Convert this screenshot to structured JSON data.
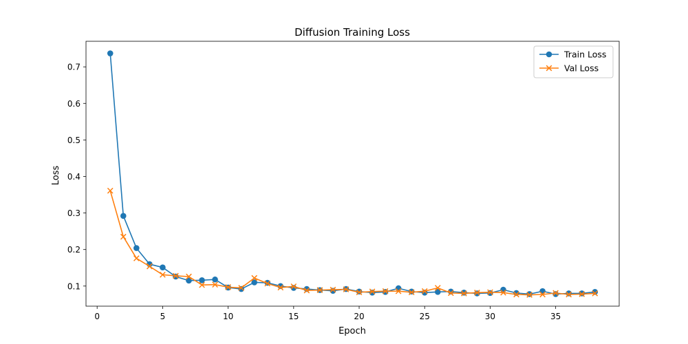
{
  "chart_data": {
    "type": "line",
    "title": "Diffusion Training Loss",
    "xlabel": "Epoch",
    "ylabel": "Loss",
    "xlim": [
      -0.85,
      39.85
    ],
    "ylim": [
      0.045,
      0.77
    ],
    "x_ticks": [
      0,
      5,
      10,
      15,
      20,
      25,
      30,
      35
    ],
    "y_ticks": [
      0.1,
      0.2,
      0.3,
      0.4,
      0.5,
      0.6,
      0.7
    ],
    "grid": false,
    "legend_position": "top-right",
    "x": [
      1,
      2,
      3,
      4,
      5,
      6,
      7,
      8,
      9,
      10,
      11,
      12,
      13,
      14,
      15,
      16,
      17,
      18,
      19,
      20,
      21,
      22,
      23,
      24,
      25,
      26,
      27,
      28,
      29,
      30,
      31,
      32,
      33,
      34,
      35,
      36,
      37,
      38
    ],
    "series": [
      {
        "name": "Train Loss",
        "color": "#1f77b4",
        "marker": "circle",
        "values": [
          0.737,
          0.292,
          0.204,
          0.16,
          0.151,
          0.126,
          0.115,
          0.116,
          0.118,
          0.096,
          0.092,
          0.11,
          0.109,
          0.1,
          0.095,
          0.092,
          0.089,
          0.087,
          0.092,
          0.085,
          0.082,
          0.084,
          0.094,
          0.085,
          0.082,
          0.084,
          0.085,
          0.082,
          0.08,
          0.081,
          0.09,
          0.081,
          0.078,
          0.086,
          0.078,
          0.08,
          0.08,
          0.084
        ]
      },
      {
        "name": "Val Loss",
        "color": "#ff7f0e",
        "marker": "x",
        "values": [
          0.361,
          0.235,
          0.176,
          0.154,
          0.131,
          0.128,
          0.126,
          0.103,
          0.104,
          0.097,
          0.095,
          0.122,
          0.107,
          0.096,
          0.099,
          0.088,
          0.089,
          0.09,
          0.091,
          0.083,
          0.085,
          0.086,
          0.086,
          0.083,
          0.086,
          0.095,
          0.081,
          0.08,
          0.082,
          0.083,
          0.082,
          0.077,
          0.076,
          0.077,
          0.081,
          0.077,
          0.078,
          0.08
        ]
      }
    ]
  }
}
